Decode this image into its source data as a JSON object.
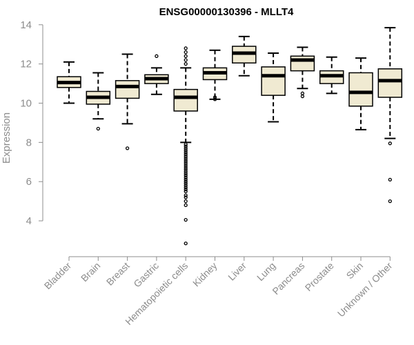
{
  "chart_data": {
    "type": "boxplot",
    "title": "ENSG00000130396 - MLLT4",
    "ylabel": "Expression",
    "xlabel": "",
    "ylim": [
      2.7,
      14.1
    ],
    "yticks": [
      4,
      6,
      8,
      10,
      12,
      14
    ],
    "box_fill": "#f0ead2",
    "box_stroke": "#000000",
    "axis_color": "#8c8c8c",
    "categories": [
      "Bladder",
      "Brain",
      "Breast",
      "Gastric",
      "Hematopoietic cells",
      "Kidney",
      "Liver",
      "Lung",
      "Pancreas",
      "Prostate",
      "Skin",
      "Unknown / Other"
    ],
    "boxes": [
      {
        "label": "Bladder",
        "whisker_low": 10.0,
        "q1": 10.8,
        "median": 11.05,
        "q3": 11.35,
        "whisker_high": 12.1,
        "outliers": []
      },
      {
        "label": "Brain",
        "whisker_low": 9.2,
        "q1": 9.95,
        "median": 10.3,
        "q3": 10.6,
        "whisker_high": 11.55,
        "outliers": [
          8.7
        ]
      },
      {
        "label": "Breast",
        "whisker_low": 8.95,
        "q1": 10.25,
        "median": 10.85,
        "q3": 11.15,
        "whisker_high": 12.5,
        "outliers": [
          7.7
        ]
      },
      {
        "label": "Gastric",
        "whisker_low": 10.45,
        "q1": 11.0,
        "median": 11.25,
        "q3": 11.45,
        "whisker_high": 11.8,
        "outliers": [
          12.4
        ]
      },
      {
        "label": "Hematopoietic cells",
        "whisker_low": 8.0,
        "q1": 9.6,
        "median": 10.3,
        "q3": 10.7,
        "whisker_high": 11.8,
        "outliers": [
          12.8,
          12.6,
          12.4,
          12.2,
          12.0,
          7.9,
          7.8,
          7.7,
          7.6,
          7.5,
          7.4,
          7.3,
          7.2,
          7.1,
          7.0,
          6.9,
          6.8,
          6.7,
          6.6,
          6.5,
          6.4,
          6.3,
          6.2,
          6.1,
          6.0,
          5.9,
          5.8,
          5.7,
          5.6,
          5.5,
          5.3,
          5.2,
          5.0,
          4.8,
          4.05,
          2.85
        ]
      },
      {
        "label": "Kidney",
        "whisker_low": 10.2,
        "q1": 11.2,
        "median": 11.55,
        "q3": 11.8,
        "whisker_high": 12.7,
        "outliers": [
          10.3,
          10.2
        ]
      },
      {
        "label": "Liver",
        "whisker_low": 11.4,
        "q1": 12.05,
        "median": 12.55,
        "q3": 12.9,
        "whisker_high": 13.4,
        "outliers": []
      },
      {
        "label": "Lung",
        "whisker_low": 9.05,
        "q1": 10.4,
        "median": 11.4,
        "q3": 11.85,
        "whisker_high": 12.55,
        "outliers": []
      },
      {
        "label": "Pancreas",
        "whisker_low": 10.75,
        "q1": 11.65,
        "median": 12.2,
        "q3": 12.4,
        "whisker_high": 12.85,
        "outliers": [
          10.5,
          10.35
        ]
      },
      {
        "label": "Prostate",
        "whisker_low": 10.5,
        "q1": 11.0,
        "median": 11.4,
        "q3": 11.65,
        "whisker_high": 12.35,
        "outliers": []
      },
      {
        "label": "Skin",
        "whisker_low": 8.65,
        "q1": 9.85,
        "median": 10.55,
        "q3": 11.55,
        "whisker_high": 12.3,
        "outliers": []
      },
      {
        "label": "Unknown / Other",
        "whisker_low": 8.2,
        "q1": 10.3,
        "median": 11.15,
        "q3": 11.75,
        "whisker_high": 13.85,
        "outliers": [
          7.95,
          6.1,
          5.0
        ]
      }
    ]
  }
}
